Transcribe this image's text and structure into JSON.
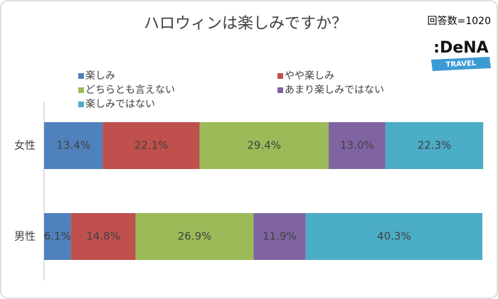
{
  "chart_data": {
    "type": "stacked-bar-horizontal",
    "title": "ハロウィンは楽しみですか？",
    "annotation": "回答数=1020",
    "logo": {
      "name": ":DeNA",
      "tagline": "TRAVEL"
    },
    "categories": [
      "女性",
      "男性"
    ],
    "xlim": [
      0,
      100
    ],
    "series": [
      {
        "name": "楽しみ",
        "color": "#4f81bd",
        "values": [
          13.4,
          6.1
        ],
        "value_labels": [
          "13.4%",
          "6.1%"
        ]
      },
      {
        "name": "やや楽しみ",
        "color": "#c0504d",
        "values": [
          22.1,
          14.8
        ],
        "value_labels": [
          "22.1%",
          "14.8%"
        ]
      },
      {
        "name": "どちらとも言えない",
        "color": "#9bbb59",
        "values": [
          29.4,
          26.9
        ],
        "value_labels": [
          "29.4%",
          "26.9%"
        ]
      },
      {
        "name": "あまり楽しみではない",
        "color": "#8064a2",
        "values": [
          13.0,
          11.9
        ],
        "value_labels": [
          "13.0%",
          "11.9%"
        ]
      },
      {
        "name": "楽しみではない",
        "color": "#4bacc6",
        "values": [
          22.3,
          40.3
        ],
        "value_labels": [
          "22.3%",
          "40.3%"
        ]
      }
    ]
  }
}
